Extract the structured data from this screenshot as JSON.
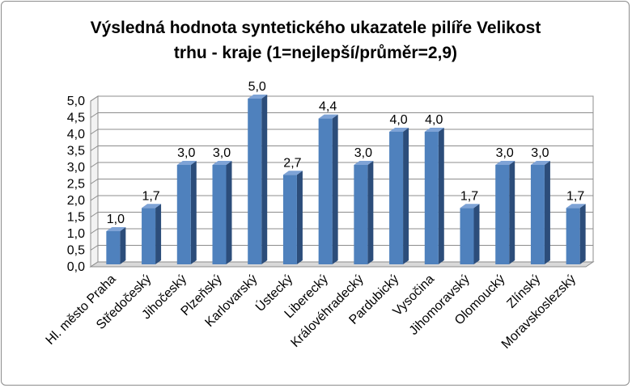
{
  "chart_data": {
    "type": "bar",
    "title_lines": [
      "Výsledná hodnota syntetického ukazatele pilíře Velikost",
      "trhu - kraje (1=nejlepší/průměr=2,9)"
    ],
    "categories": [
      "Hl. město Praha",
      "Středočeský",
      "Jihočeský",
      "Plzeňský",
      "Karlovarský",
      "Ústecký",
      "Liberecký",
      "Královéhradecký",
      "Pardubický",
      "Vysočina",
      "Jihomoravský",
      "Olomoucký",
      "Zlínský",
      "Moravskoslezský"
    ],
    "values": [
      1.0,
      1.7,
      3.0,
      3.0,
      5.0,
      2.7,
      4.4,
      3.0,
      4.0,
      4.0,
      1.7,
      3.0,
      3.0,
      1.7
    ],
    "data_labels": [
      "1,0",
      "1,7",
      "3,0",
      "3,0",
      "5,0",
      "2,7",
      "4,4",
      "3,0",
      "4,0",
      "4,0",
      "1,7",
      "3,0",
      "3,0",
      "1,7"
    ],
    "y_ticks": [
      "0,0",
      "0,5",
      "1,0",
      "1,5",
      "2,0",
      "2,5",
      "3,0",
      "3,5",
      "4,0",
      "4,5",
      "5,0"
    ],
    "ylim": [
      0,
      5
    ],
    "xlabel": "",
    "ylabel": "",
    "grid": true,
    "style_3d": true,
    "colors": {
      "bar_front": "#4f81bd",
      "bar_side": "#2c4d7a",
      "bar_top": "#7ea3d6",
      "grid": "#8c8c8c",
      "wall": "#ffffff",
      "floor": "#d9d9d9"
    }
  }
}
